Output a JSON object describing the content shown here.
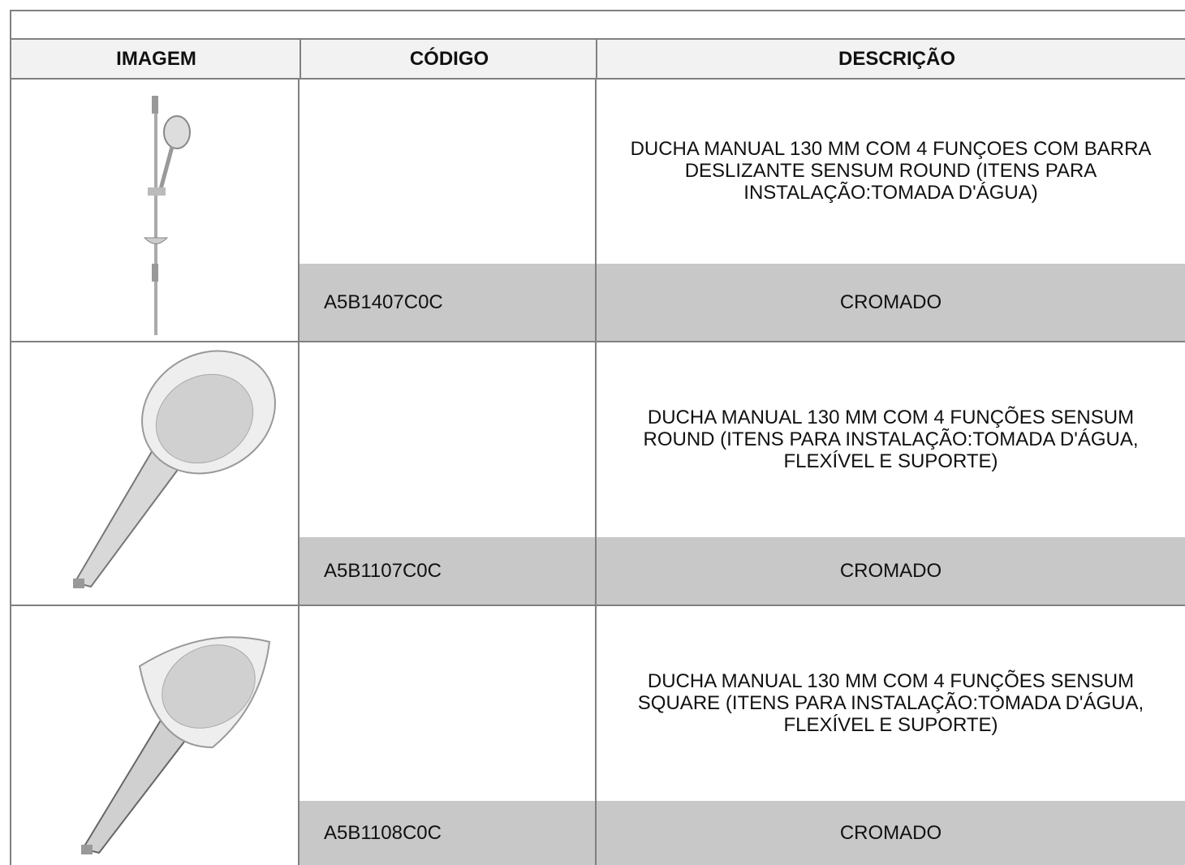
{
  "table": {
    "columns": [
      "IMAGEM",
      "CÓDIGO",
      "DESCRIÇÃO"
    ],
    "rows": [
      {
        "code": "A5B1407C0C",
        "description": "DUCHA MANUAL 130 MM COM 4 FUNÇOES COM BARRA DESLIZANTE SENSUM ROUND (ITENS PARA INSTALAÇÃO:TOMADA D'ÁGUA)",
        "finish": "CROMADO"
      },
      {
        "code": "A5B1107C0C",
        "description": "DUCHA MANUAL 130 MM COM 4 FUNÇÕES SENSUM ROUND (ITENS PARA INSTALAÇÃO:TOMADA D'ÁGUA, FLEXÍVEL E SUPORTE)",
        "finish": "CROMADO"
      },
      {
        "code": "A5B1108C0C",
        "description": "DUCHA MANUAL 130 MM COM 4 FUNÇÕES SENSUM SQUARE (ITENS PARA INSTALAÇÃO:TOMADA D'ÁGUA, FLEXÍVEL E SUPORTE)",
        "finish": "CROMADO"
      }
    ]
  }
}
